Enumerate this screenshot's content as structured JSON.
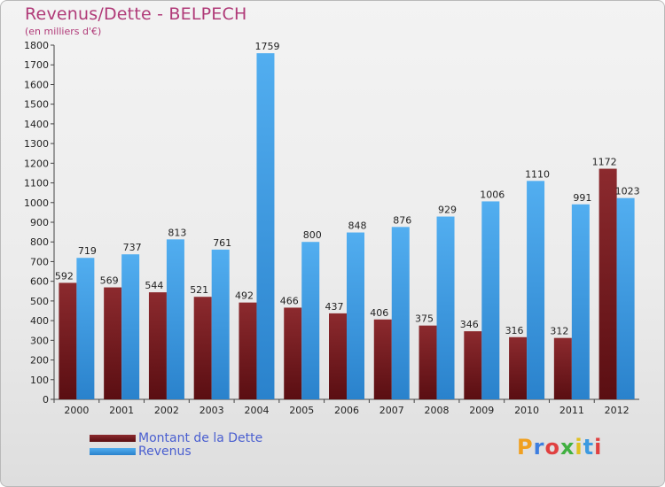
{
  "colors": {
    "dette": "#7a1a1f",
    "revenus": "#3d9ae0",
    "title": "#b03a78",
    "legend_text": "#4a5fd0"
  },
  "chart_data": {
    "type": "bar",
    "title": "Revenus/Dette - BELPECH",
    "subtitle": "(en milliers d'€)",
    "categories": [
      "2000",
      "2001",
      "2002",
      "2003",
      "2004",
      "2005",
      "2006",
      "2007",
      "2008",
      "2009",
      "2010",
      "2011",
      "2012"
    ],
    "series": [
      {
        "name": "Montant de la Dette",
        "values": [
          592,
          569,
          544,
          521,
          492,
          466,
          437,
          406,
          375,
          346,
          316,
          312,
          1172
        ]
      },
      {
        "name": "Revenus",
        "values": [
          719,
          737,
          813,
          761,
          1759,
          800,
          848,
          876,
          929,
          1006,
          1110,
          991,
          1023
        ]
      }
    ],
    "ylim": [
      0,
      1800
    ],
    "yticks": [
      0,
      100,
      200,
      300,
      400,
      500,
      600,
      700,
      800,
      900,
      1000,
      1100,
      1200,
      1300,
      1400,
      1500,
      1600,
      1700,
      1800
    ],
    "grid": false,
    "legend_position": "bottom-left"
  },
  "logo": {
    "letters": [
      "P",
      "r",
      "o",
      "x",
      "i",
      "t",
      "i"
    ],
    "colors": [
      "#f0a020",
      "#3d7ee0",
      "#e04040",
      "#40b040",
      "#e0c020",
      "#3d9ae0",
      "#e04040"
    ]
  }
}
